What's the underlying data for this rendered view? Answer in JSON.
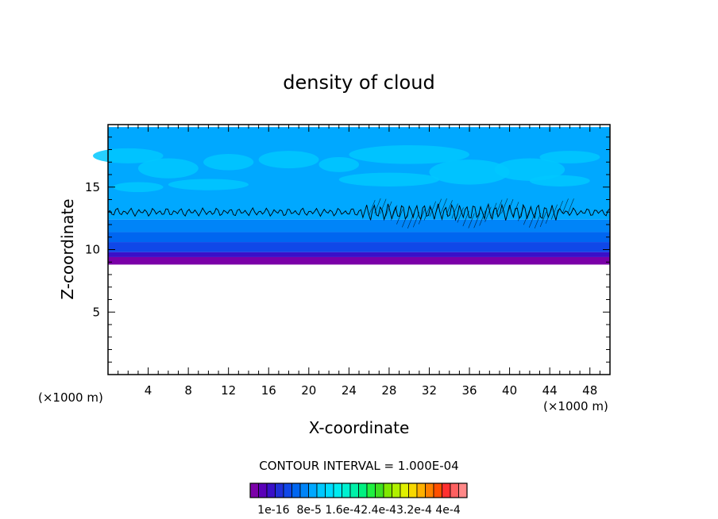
{
  "chart_data": {
    "type": "heatmap",
    "title": "density of cloud",
    "xlabel": "X-coordinate",
    "ylabel": "Z-coordinate",
    "x_unit_left": "(×1000 m)",
    "x_unit_right": "(×1000 m)",
    "xlim": [
      0,
      50
    ],
    "ylim": [
      0,
      20
    ],
    "x_ticks": [
      4,
      8,
      12,
      16,
      20,
      24,
      28,
      32,
      36,
      40,
      44,
      48
    ],
    "y_ticks": [
      5,
      10,
      15
    ],
    "contour_interval_text": "CONTOUR INTERVAL = 1.000E-04",
    "colorbar": {
      "colors": [
        "#7b00a8",
        "#5a00b8",
        "#3a10c8",
        "#2030d8",
        "#1048e8",
        "#0066f0",
        "#0084f8",
        "#00a8ff",
        "#00c8ff",
        "#00dcff",
        "#00ecf0",
        "#00f0d0",
        "#00f0a8",
        "#00f080",
        "#20f040",
        "#40e020",
        "#80e800",
        "#b0f000",
        "#e0f000",
        "#f8d800",
        "#ffb000",
        "#ff8000",
        "#ff5000",
        "#ff3030",
        "#ff6060",
        "#ff8888"
      ],
      "tick_labels": [
        "1e-16",
        "8e-5",
        "1.6e-4",
        "2.4e-4",
        "3.2e-4",
        "4e-4"
      ],
      "tick_label_text": "1e-16  8e-5 1.6e-42.4e-43.2e-4 4e-4"
    },
    "field_bands": [
      {
        "z_from": 8.8,
        "z_to": 9.4,
        "color": "#7b00a8"
      },
      {
        "z_from": 9.4,
        "z_to": 9.8,
        "color": "#3a10c8"
      },
      {
        "z_from": 9.8,
        "z_to": 10.6,
        "color": "#1048e8"
      },
      {
        "z_from": 10.6,
        "z_to": 11.4,
        "color": "#0066f0"
      },
      {
        "z_from": 11.4,
        "z_to": 12.4,
        "color": "#0084f8"
      },
      {
        "z_from": 12.4,
        "z_to": 19.8,
        "color": "#00a8ff"
      }
    ],
    "field_top_z": 19.8,
    "threshold_line_z": 13.0
  }
}
